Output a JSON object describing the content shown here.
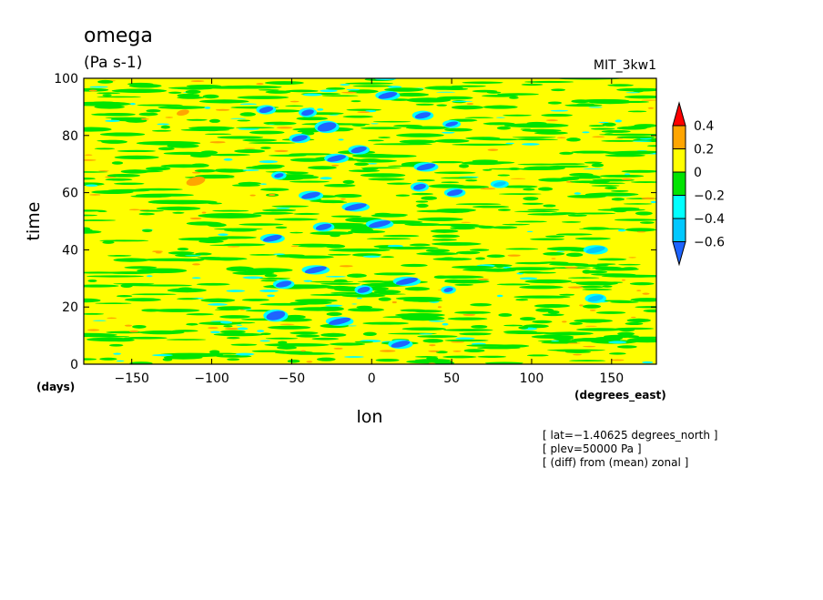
{
  "chart_data": {
    "type": "heatmap",
    "title": "omega",
    "units": "(Pa s-1)",
    "model_label": "MIT_3kw1",
    "xlabel": "lon",
    "ylabel": "time",
    "x_unit_label": "(degrees_east)",
    "y_unit_label": "(days)",
    "xlim": [
      -180,
      178
    ],
    "ylim": [
      0,
      100
    ],
    "x_ticks": [
      -150,
      -100,
      -50,
      0,
      50,
      100,
      150
    ],
    "x_tick_labels": [
      "−150",
      "−100",
      "−50",
      "0",
      "50",
      "100",
      "150"
    ],
    "y_ticks": [
      0,
      20,
      40,
      60,
      80,
      100
    ],
    "y_tick_labels": [
      "0",
      "20",
      "40",
      "60",
      "80",
      "100"
    ],
    "colorbar": {
      "levels": [
        0.4,
        0.2,
        0,
        -0.2,
        -0.4,
        -0.6
      ],
      "level_labels": [
        "0.4",
        "0.2",
        "0",
        "−0.2",
        "−0.4",
        "−0.6"
      ],
      "bins": [
        {
          "range": "> 0.4",
          "color": "#ff0000"
        },
        {
          "range": "0.2 – 0.4",
          "color": "#ffa500"
        },
        {
          "range": "0 – 0.2",
          "color": "#ffff00"
        },
        {
          "range": "-0.2 – 0",
          "color": "#00e400"
        },
        {
          "range": "-0.4 – -0.2",
          "color": "#00ffff"
        },
        {
          "range": "-0.6 – -0.4",
          "color": "#00c8ff"
        },
        {
          "range": "< -0.6",
          "color": "#1e64ff"
        }
      ]
    },
    "background_color": "#ffff00",
    "features": [
      {
        "lon": -28,
        "time": 83,
        "dlon": 12,
        "dtime": 3,
        "value": -0.7
      },
      {
        "lon": -40,
        "time": 88,
        "dlon": 8,
        "dtime": 2,
        "value": -0.7
      },
      {
        "lon": -66,
        "time": 89,
        "dlon": 9,
        "dtime": 2,
        "value": -0.7
      },
      {
        "lon": -45,
        "time": 79,
        "dlon": 10,
        "dtime": 2,
        "value": -0.7
      },
      {
        "lon": -22,
        "time": 72,
        "dlon": 12,
        "dtime": 2,
        "value": -0.7
      },
      {
        "lon": -8,
        "time": 75,
        "dlon": 10,
        "dtime": 2,
        "value": -0.7
      },
      {
        "lon": 10,
        "time": 94,
        "dlon": 12,
        "dtime": 2,
        "value": -0.7
      },
      {
        "lon": 32,
        "time": 87,
        "dlon": 10,
        "dtime": 2,
        "value": -0.7
      },
      {
        "lon": 50,
        "time": 84,
        "dlon": 8,
        "dtime": 1.5,
        "value": -0.7
      },
      {
        "lon": 34,
        "time": 69,
        "dlon": 12,
        "dtime": 2,
        "value": -0.7
      },
      {
        "lon": 52,
        "time": 60,
        "dlon": 10,
        "dtime": 2,
        "value": -0.7
      },
      {
        "lon": 30,
        "time": 62,
        "dlon": 8,
        "dtime": 2,
        "value": -0.7
      },
      {
        "lon": -38,
        "time": 59,
        "dlon": 12,
        "dtime": 2,
        "value": -0.7
      },
      {
        "lon": -10,
        "time": 55,
        "dlon": 14,
        "dtime": 2,
        "value": -0.7
      },
      {
        "lon": 5,
        "time": 49,
        "dlon": 14,
        "dtime": 2,
        "value": -0.7
      },
      {
        "lon": -30,
        "time": 48,
        "dlon": 10,
        "dtime": 2,
        "value": -0.7
      },
      {
        "lon": -62,
        "time": 44,
        "dlon": 12,
        "dtime": 2,
        "value": -0.7
      },
      {
        "lon": -35,
        "time": 33,
        "dlon": 14,
        "dtime": 2,
        "value": -0.6
      },
      {
        "lon": -55,
        "time": 28,
        "dlon": 10,
        "dtime": 2,
        "value": -0.6
      },
      {
        "lon": 22,
        "time": 29,
        "dlon": 14,
        "dtime": 2,
        "value": -0.6
      },
      {
        "lon": -5,
        "time": 26,
        "dlon": 8,
        "dtime": 2,
        "value": -0.7
      },
      {
        "lon": 48,
        "time": 26,
        "dlon": 6,
        "dtime": 1.5,
        "value": -0.7
      },
      {
        "lon": -60,
        "time": 17,
        "dlon": 12,
        "dtime": 3,
        "value": -0.7
      },
      {
        "lon": -20,
        "time": 15,
        "dlon": 14,
        "dtime": 2,
        "value": -0.6
      },
      {
        "lon": 18,
        "time": 7,
        "dlon": 12,
        "dtime": 2,
        "value": -0.6
      },
      {
        "lon": -58,
        "time": 66,
        "dlon": 6,
        "dtime": 1.5,
        "value": -0.7
      },
      {
        "lon": 80,
        "time": 63,
        "dlon": 8,
        "dtime": 1.5,
        "value": -0.5
      },
      {
        "lon": 140,
        "time": 40,
        "dlon": 12,
        "dtime": 2,
        "value": -0.5
      },
      {
        "lon": 140,
        "time": 23,
        "dlon": 10,
        "dtime": 2,
        "value": -0.5
      },
      {
        "lon": -110,
        "time": 64,
        "dlon": 12,
        "dtime": 3,
        "value": 0.3
      },
      {
        "lon": -118,
        "time": 88,
        "dlon": 8,
        "dtime": 2,
        "value": 0.3
      }
    ]
  }
}
